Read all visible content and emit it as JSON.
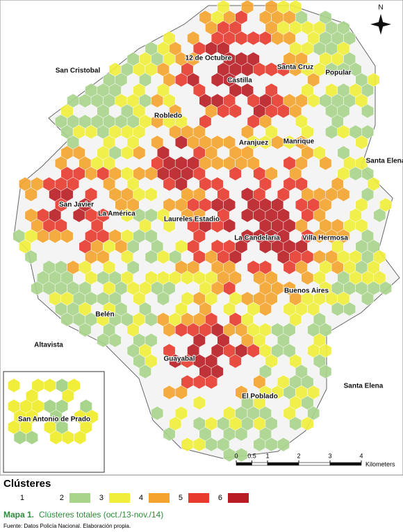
{
  "north": "N",
  "places": [
    "San Cristobal",
    "12 de Octubre",
    "Castilla",
    "Santa Cruz",
    "Popular",
    "Robledo",
    "Aranjuez",
    "Manrique",
    "Santa Elena",
    "San Javier",
    "La América",
    "Laureles Estadio",
    "La Candelaria",
    "Villa Hermosa",
    "Buenos Aires",
    "Belén",
    "Altavista",
    "Guayabal",
    "El Poblado",
    "Santa Elena",
    "San Antonio de Prado"
  ],
  "scale": {
    "ticks": [
      0,
      0.5,
      1,
      2,
      3,
      4
    ],
    "unit": "Kilometers"
  },
  "legend": {
    "title": "Clústeres",
    "items": [
      {
        "label": "1",
        "color": "#ffffff"
      },
      {
        "label": "2",
        "color": "#a8d48c"
      },
      {
        "label": "3",
        "color": "#f0ee3a"
      },
      {
        "label": "4",
        "color": "#f4a42c"
      },
      {
        "label": "5",
        "color": "#e83a2e"
      },
      {
        "label": "6",
        "color": "#b81d24"
      }
    ]
  },
  "caption": {
    "number": "Mapa 1.",
    "title": "Clústeres totales (oct./13-nov./14)"
  },
  "source": "Fuente: Datos Policía Nacional. Elaboración propia."
}
